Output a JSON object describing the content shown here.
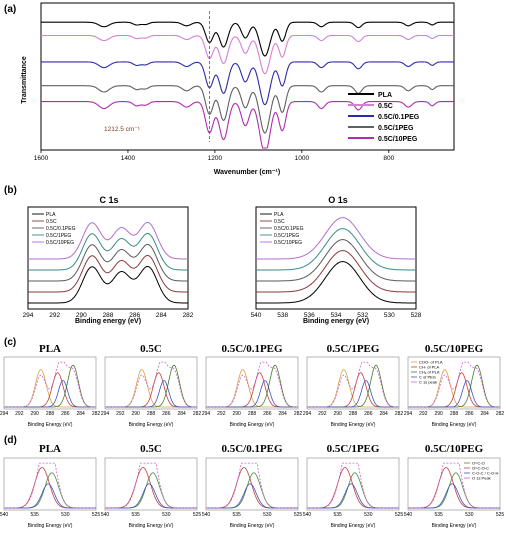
{
  "chart_data": [
    {
      "id": "a",
      "panel_label": "(a)",
      "type": "line",
      "xlabel": "Wavenumber (cm⁻¹)",
      "ylabel": "Transmittance",
      "xlim": [
        1600,
        650
      ],
      "x_reversed": true,
      "xticks": [
        "1600",
        "1400",
        "1200",
        "1000",
        "800"
      ],
      "annotation": "1212.5 cm⁻¹",
      "annotation_x": 1212.5,
      "legend_position": "lower-right",
      "series": [
        {
          "name": "PLA",
          "color": "#000000",
          "baseline": 0.9
        },
        {
          "name": "0.5C",
          "color": "#d57fd5",
          "baseline": 0.8
        },
        {
          "name": "0.5C/0.1PEG",
          "color": "#2c2ca8",
          "baseline": 0.6
        },
        {
          "name": "0.5C/1PEG",
          "color": "#606060",
          "baseline": 0.42
        },
        {
          "name": "0.5C/10PEG",
          "color": "#b02cb0",
          "baseline": 0.3
        }
      ]
    },
    {
      "id": "b-c1s",
      "panel_label": "(b)",
      "type": "line",
      "title": "C 1s",
      "xlabel": "Binding energy (eV)",
      "xlim": [
        294,
        282
      ],
      "x_reversed": true,
      "xticks": [
        "294",
        "292",
        "290",
        "288",
        "286",
        "284",
        "282"
      ],
      "legend_position": "top-left",
      "peaks": [
        289.2,
        287.0,
        285.0
      ],
      "series": [
        {
          "name": "PLA",
          "color": "#000000"
        },
        {
          "name": "0.5C",
          "color": "#8b3a3a"
        },
        {
          "name": "0.5C/0.1PEG",
          "color": "#5a5a5a"
        },
        {
          "name": "0.5C/1PEG",
          "color": "#3a8a8a"
        },
        {
          "name": "0.5C/10PEG",
          "color": "#b070d0"
        }
      ]
    },
    {
      "id": "b-o1s",
      "type": "line",
      "title": "O 1s",
      "xlabel": "Binding energy (eV)",
      "xlim": [
        540,
        528
      ],
      "x_reversed": true,
      "xticks": [
        "540",
        "538",
        "536",
        "534",
        "532",
        "530",
        "528"
      ],
      "legend_position": "top-left",
      "peak": 533.5,
      "series": [
        {
          "name": "PLA",
          "color": "#000000"
        },
        {
          "name": "0.5C",
          "color": "#8b3a3a"
        },
        {
          "name": "0.5C/0.1PEG",
          "color": "#5a5a5a"
        },
        {
          "name": "0.5C/1PEG",
          "color": "#3a8a8a"
        },
        {
          "name": "0.5C/10PEG",
          "color": "#b070d0"
        }
      ]
    },
    {
      "id": "c",
      "panel_label": "(c)",
      "type": "line",
      "xlabel": "Binding Energy (eV)",
      "xlim": [
        294,
        282
      ],
      "x_reversed": true,
      "xticks": [
        "294",
        "292",
        "290",
        "288",
        "286",
        "284",
        "282"
      ],
      "legend_panel": "0.5C/10PEG",
      "legend_position": "top-left",
      "components": [
        {
          "name": "COO- of PLA",
          "color": "#d8a040",
          "center": 289.2
        },
        {
          "name": "CH- of PLA",
          "color": "#c04040",
          "center": 287.0
        },
        {
          "name": "CH₃ of PLA",
          "color": "#4a7a2a",
          "center": 285.0
        },
        {
          "name": "C of PEG",
          "color": "#4050c0",
          "center": 286.3
        },
        {
          "name": "C 1s peak",
          "color": "#d060d0"
        }
      ],
      "panels": [
        "PLA",
        "0.5C",
        "0.5C/0.1PEG",
        "0.5C/1PEG",
        "0.5C/10PEG"
      ]
    },
    {
      "id": "d",
      "panel_label": "(d)",
      "type": "line",
      "xlabel": "Binding Energy (eV)",
      "xlim": [
        540,
        525
      ],
      "x_reversed": true,
      "xticks": [
        "540",
        "535",
        "530",
        "525"
      ],
      "legend_panel": "0.5C/10PEG",
      "legend_position": "top-right",
      "components": [
        {
          "name": "O=C-O",
          "color": "#4a8a3a",
          "center": 532.2
        },
        {
          "name": "O=C-O-C",
          "color": "#c04040",
          "center": 533.8
        },
        {
          "name": "C-O-C / C-O-H",
          "color": "#4050c0",
          "center": 532.8
        },
        {
          "name": "O 1s Peak",
          "color": "#d060d0"
        }
      ],
      "panels": [
        "PLA",
        "0.5C",
        "0.5C/0.1PEG",
        "0.5C/1PEG",
        "0.5C/10PEG"
      ]
    }
  ]
}
